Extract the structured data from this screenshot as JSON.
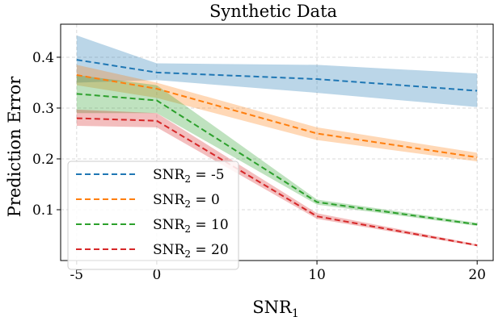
{
  "chart_data": {
    "type": "line",
    "title": "Synthetic Data",
    "xlabel": "SNR",
    "xlabel_sub": "1",
    "ylabel": "Prediction Error",
    "x": [
      -5,
      0,
      10,
      20
    ],
    "x_tick_labels": [
      "-5",
      "0",
      "10",
      "20"
    ],
    "xlim": [
      -6,
      21
    ],
    "y_ticks": [
      0.1,
      0.2,
      0.3,
      0.4
    ],
    "y_tick_labels": [
      "0.1",
      "0.2",
      "0.3",
      "0.4"
    ],
    "ylim": [
      0.0,
      0.465
    ],
    "grid": true,
    "legend_position": "lower-left",
    "series": [
      {
        "name": "SNR",
        "name_sub": "2",
        "name_suffix": " = -5",
        "color": "#1f77b4",
        "values": [
          0.395,
          0.37,
          0.357,
          0.334
        ],
        "lower": [
          0.35,
          0.355,
          0.33,
          0.302
        ],
        "upper": [
          0.443,
          0.388,
          0.385,
          0.368
        ]
      },
      {
        "name": "SNR",
        "name_sub": "2",
        "name_suffix": " = 0",
        "color": "#ff7f0e",
        "values": [
          0.365,
          0.338,
          0.25,
          0.203
        ],
        "lower": [
          0.345,
          0.32,
          0.237,
          0.195
        ],
        "upper": [
          0.385,
          0.35,
          0.262,
          0.212
        ]
      },
      {
        "name": "SNR",
        "name_sub": "2",
        "name_suffix": " = 10",
        "color": "#2ca02c",
        "values": [
          0.328,
          0.315,
          0.115,
          0.071
        ],
        "lower": [
          0.29,
          0.29,
          0.11,
          0.068
        ],
        "upper": [
          0.365,
          0.345,
          0.12,
          0.074
        ]
      },
      {
        "name": "SNR",
        "name_sub": "2",
        "name_suffix": " = 20",
        "color": "#d62728",
        "values": [
          0.28,
          0.275,
          0.087,
          0.03
        ],
        "lower": [
          0.265,
          0.262,
          0.082,
          0.028
        ],
        "upper": [
          0.297,
          0.29,
          0.093,
          0.032
        ]
      }
    ]
  }
}
